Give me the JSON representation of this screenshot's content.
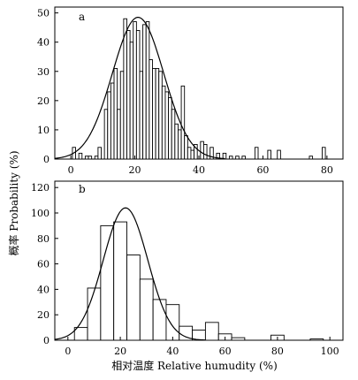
{
  "figure": {
    "ylabel": "概率 Probability (%)",
    "xlabel": "相对温度 Relative humudity (%)"
  },
  "chart_data": [
    {
      "panel": "a",
      "type": "bar",
      "xlim": [
        -5,
        85
      ],
      "ylim": [
        0,
        52
      ],
      "xticks": [
        0,
        20,
        40,
        60,
        80
      ],
      "yticks": [
        0,
        10,
        20,
        30,
        40,
        50
      ],
      "bin_width": 1,
      "histogram": [
        {
          "x": 1,
          "y": 4
        },
        {
          "x": 3,
          "y": 2
        },
        {
          "x": 5,
          "y": 1
        },
        {
          "x": 6,
          "y": 1
        },
        {
          "x": 8,
          "y": 1
        },
        {
          "x": 9,
          "y": 4
        },
        {
          "x": 11,
          "y": 17
        },
        {
          "x": 12,
          "y": 23
        },
        {
          "x": 13,
          "y": 26
        },
        {
          "x": 14,
          "y": 31
        },
        {
          "x": 15,
          "y": 17
        },
        {
          "x": 16,
          "y": 30
        },
        {
          "x": 17,
          "y": 48
        },
        {
          "x": 18,
          "y": 44
        },
        {
          "x": 19,
          "y": 40
        },
        {
          "x": 20,
          "y": 47
        },
        {
          "x": 21,
          "y": 44
        },
        {
          "x": 22,
          "y": 30
        },
        {
          "x": 23,
          "y": 46
        },
        {
          "x": 24,
          "y": 47
        },
        {
          "x": 25,
          "y": 34
        },
        {
          "x": 26,
          "y": 31
        },
        {
          "x": 27,
          "y": 31
        },
        {
          "x": 28,
          "y": 30
        },
        {
          "x": 29,
          "y": 25
        },
        {
          "x": 30,
          "y": 23
        },
        {
          "x": 31,
          "y": 21
        },
        {
          "x": 32,
          "y": 17
        },
        {
          "x": 33,
          "y": 12
        },
        {
          "x": 34,
          "y": 10
        },
        {
          "x": 35,
          "y": 25
        },
        {
          "x": 36,
          "y": 8
        },
        {
          "x": 37,
          "y": 4
        },
        {
          "x": 38,
          "y": 3
        },
        {
          "x": 39,
          "y": 5
        },
        {
          "x": 41,
          "y": 6
        },
        {
          "x": 42,
          "y": 5
        },
        {
          "x": 44,
          "y": 4
        },
        {
          "x": 46,
          "y": 2
        },
        {
          "x": 48,
          "y": 2
        },
        {
          "x": 50,
          "y": 1
        },
        {
          "x": 52,
          "y": 1
        },
        {
          "x": 54,
          "y": 1
        },
        {
          "x": 58,
          "y": 4
        },
        {
          "x": 62,
          "y": 3
        },
        {
          "x": 65,
          "y": 3
        },
        {
          "x": 75,
          "y": 1
        },
        {
          "x": 79,
          "y": 4
        }
      ],
      "curve": {
        "type": "normal",
        "peak_x": 21,
        "peak_y": 48.5,
        "sigma": 8
      }
    },
    {
      "panel": "b",
      "type": "bar",
      "xlim": [
        -5,
        105
      ],
      "ylim": [
        0,
        125
      ],
      "xticks": [
        0,
        20,
        40,
        60,
        80,
        100
      ],
      "yticks": [
        0,
        20,
        40,
        60,
        80,
        100,
        120
      ],
      "bin_width": 5,
      "histogram": [
        {
          "x": 5,
          "y": 10
        },
        {
          "x": 10,
          "y": 41
        },
        {
          "x": 15,
          "y": 90
        },
        {
          "x": 20,
          "y": 93
        },
        {
          "x": 25,
          "y": 67
        },
        {
          "x": 30,
          "y": 48
        },
        {
          "x": 35,
          "y": 32
        },
        {
          "x": 40,
          "y": 28
        },
        {
          "x": 45,
          "y": 11
        },
        {
          "x": 50,
          "y": 8
        },
        {
          "x": 55,
          "y": 14
        },
        {
          "x": 60,
          "y": 5
        },
        {
          "x": 65,
          "y": 2
        },
        {
          "x": 80,
          "y": 4
        },
        {
          "x": 95,
          "y": 1
        }
      ],
      "curve": {
        "type": "normal",
        "peak_x": 22,
        "peak_y": 104,
        "sigma": 8.5
      }
    }
  ]
}
